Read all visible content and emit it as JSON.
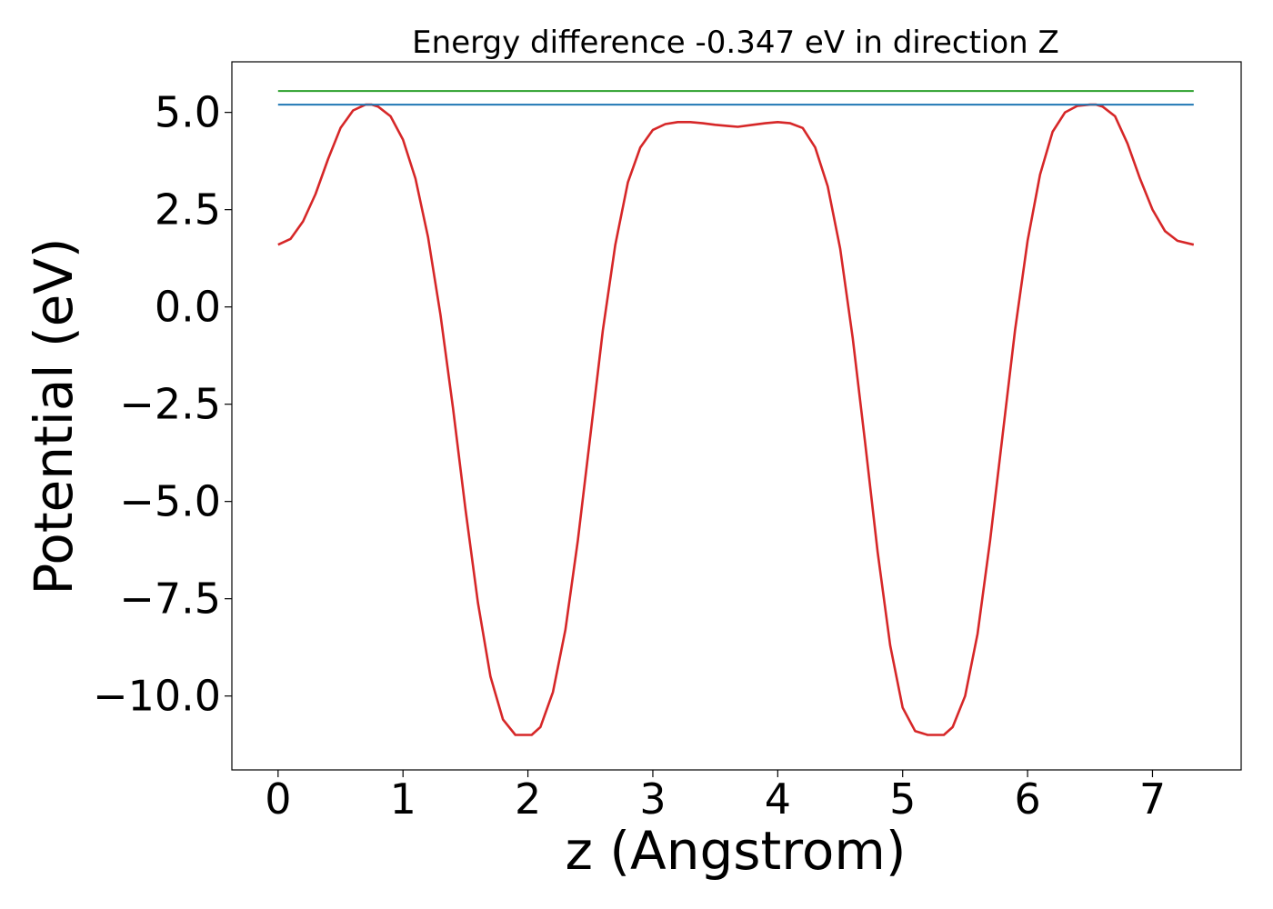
{
  "chart_data": {
    "type": "line",
    "title": "Energy difference -0.347 eV in direction Z",
    "xlabel": "z (Angstrom)",
    "ylabel": "Potential (eV)",
    "xlim": [
      -0.37,
      7.71
    ],
    "ylim": [
      -11.9,
      6.3
    ],
    "xticks": [
      0,
      1,
      2,
      3,
      4,
      5,
      6,
      7
    ],
    "xtick_labels": [
      "0",
      "1",
      "2",
      "3",
      "4",
      "5",
      "6",
      "7"
    ],
    "yticks": [
      5.0,
      2.5,
      0.0,
      -2.5,
      -5.0,
      -7.5,
      -10.0
    ],
    "ytick_labels": [
      "5.0",
      "2.5",
      "0.0",
      "−2.5",
      "−5.0",
      "−7.5",
      "−10.0"
    ],
    "grid": false,
    "series": [
      {
        "color": "#d62728",
        "x": [
          0.0,
          0.1,
          0.2,
          0.3,
          0.4,
          0.5,
          0.6,
          0.7,
          0.75,
          0.8,
          0.9,
          1.0,
          1.1,
          1.2,
          1.3,
          1.4,
          1.5,
          1.6,
          1.7,
          1.8,
          1.9,
          2.0,
          2.03,
          2.1,
          2.2,
          2.3,
          2.4,
          2.5,
          2.6,
          2.7,
          2.8,
          2.9,
          3.0,
          3.1,
          3.2,
          3.3,
          3.4,
          3.5,
          3.6,
          3.68,
          3.8,
          3.9,
          4.0,
          4.1,
          4.2,
          4.3,
          4.4,
          4.5,
          4.6,
          4.7,
          4.8,
          4.9,
          5.0,
          5.1,
          5.2,
          5.3,
          5.33,
          5.4,
          5.5,
          5.6,
          5.7,
          5.8,
          5.9,
          6.0,
          6.1,
          6.2,
          6.3,
          6.4,
          6.5,
          6.55,
          6.6,
          6.7,
          6.8,
          6.9,
          7.0,
          7.1,
          7.2,
          7.33
        ],
        "y": [
          1.6,
          1.75,
          2.2,
          2.9,
          3.8,
          4.6,
          5.05,
          5.2,
          5.2,
          5.15,
          4.9,
          4.3,
          3.3,
          1.8,
          -0.2,
          -2.6,
          -5.2,
          -7.6,
          -9.5,
          -10.6,
          -11.0,
          -11.0,
          -11.0,
          -10.8,
          -9.9,
          -8.3,
          -6.0,
          -3.3,
          -0.6,
          1.6,
          3.2,
          4.1,
          4.55,
          4.7,
          4.75,
          4.75,
          4.72,
          4.68,
          4.65,
          4.63,
          4.68,
          4.72,
          4.75,
          4.72,
          4.6,
          4.1,
          3.1,
          1.5,
          -0.8,
          -3.5,
          -6.3,
          -8.7,
          -10.3,
          -10.9,
          -11.0,
          -11.0,
          -11.0,
          -10.8,
          -10.0,
          -8.4,
          -6.0,
          -3.3,
          -0.6,
          1.7,
          3.4,
          4.5,
          5.0,
          5.17,
          5.2,
          5.2,
          5.15,
          4.9,
          4.2,
          3.3,
          2.5,
          1.95,
          1.7,
          1.6
        ]
      },
      {
        "color": "#1f77b4",
        "x": [
          0.0,
          7.33
        ],
        "y": [
          5.2,
          5.2
        ]
      },
      {
        "color": "#2ca02c",
        "x": [
          0.0,
          7.33
        ],
        "y": [
          5.55,
          5.55
        ]
      }
    ]
  }
}
